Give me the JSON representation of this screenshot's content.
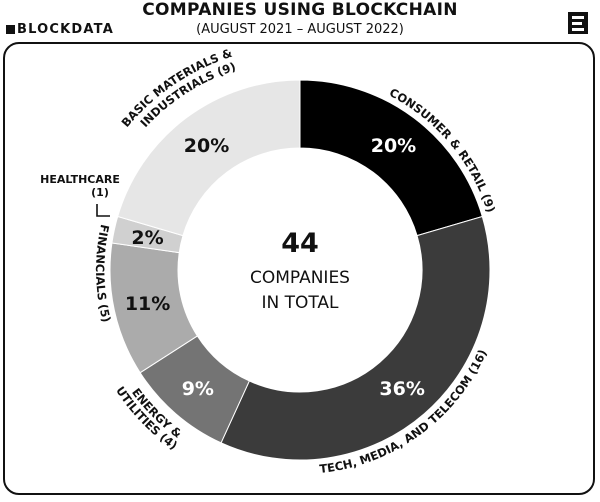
{
  "brand": "BLOCKDATA",
  "chart_data": {
    "type": "pie",
    "title": "COMPANIES USING BLOCKCHAIN",
    "subtitle": "(AUGUST 2021 – AUGUST 2022)",
    "center_value": "44",
    "center_label_1": "COMPANIES",
    "center_label_2": "IN TOTAL",
    "slices": [
      {
        "label_1": "CONSUMER & RETAIL (9)",
        "label_2": "",
        "count": 9,
        "percent_label": "20%",
        "color": "#000000",
        "text_color": "#ffffff"
      },
      {
        "label_1": "TECH, MEDIA, AND TELECOM (16)",
        "label_2": "",
        "count": 16,
        "percent_label": "36%",
        "color": "#3b3b3b",
        "text_color": "#ffffff"
      },
      {
        "label_1": "ENERGY &",
        "label_2": "UTILITIES (4)",
        "count": 4,
        "percent_label": "9%",
        "color": "#747474",
        "text_color": "#ffffff"
      },
      {
        "label_1": "FINANCIALS (5)",
        "label_2": "",
        "count": 5,
        "percent_label": "11%",
        "color": "#ababab",
        "text_color": "#111111"
      },
      {
        "label_1": "HEALTHCARE",
        "label_2": "(1)",
        "count": 1,
        "percent_label": "2%",
        "color": "#d0d0d0",
        "text_color": "#111111"
      },
      {
        "label_1": "BASIC MATERIALS &",
        "label_2": "INDUSTRIALS (9)",
        "count": 9,
        "percent_label": "20%",
        "color": "#e6e6e6",
        "text_color": "#111111"
      }
    ]
  }
}
